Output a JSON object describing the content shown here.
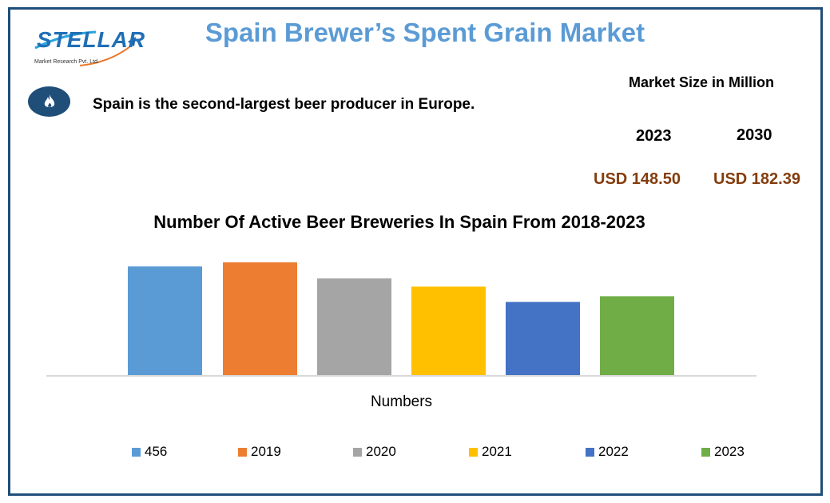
{
  "header": {
    "title": "Spain Brewer’s Spent Grain Market",
    "logo_text": "STELLAR",
    "logo_subtext": "Market Research Pvt. Ltd."
  },
  "fact": {
    "icon": "flame-icon",
    "text": "Spain is the second-largest beer producer in Europe."
  },
  "market_size": {
    "title": "Market Size in Million",
    "years": [
      "2023",
      "2030"
    ],
    "values": [
      "USD 148.50",
      "USD 182.39"
    ],
    "value_color": "#843c0c"
  },
  "chart_data": {
    "type": "bar",
    "title": "Number Of Active Beer Breweries In Spain From 2018-2023",
    "xlabel": "Numbers",
    "ylabel": "",
    "categories": [
      "Numbers"
    ],
    "series": [
      {
        "name": "456",
        "values": [
          456
        ],
        "color": "#5b9bd5"
      },
      {
        "name": "2019",
        "values": [
          473
        ],
        "color": "#ed7d31"
      },
      {
        "name": "2020",
        "values": [
          406
        ],
        "color": "#a5a5a5"
      },
      {
        "name": "2021",
        "values": [
          372
        ],
        "color": "#ffc000"
      },
      {
        "name": "2022",
        "values": [
          308
        ],
        "color": "#4472c4"
      },
      {
        "name": "2023",
        "values": [
          332
        ],
        "color": "#70ad47"
      }
    ],
    "ylim": [
      0,
      500
    ],
    "grid": false,
    "legend": "bottom"
  }
}
